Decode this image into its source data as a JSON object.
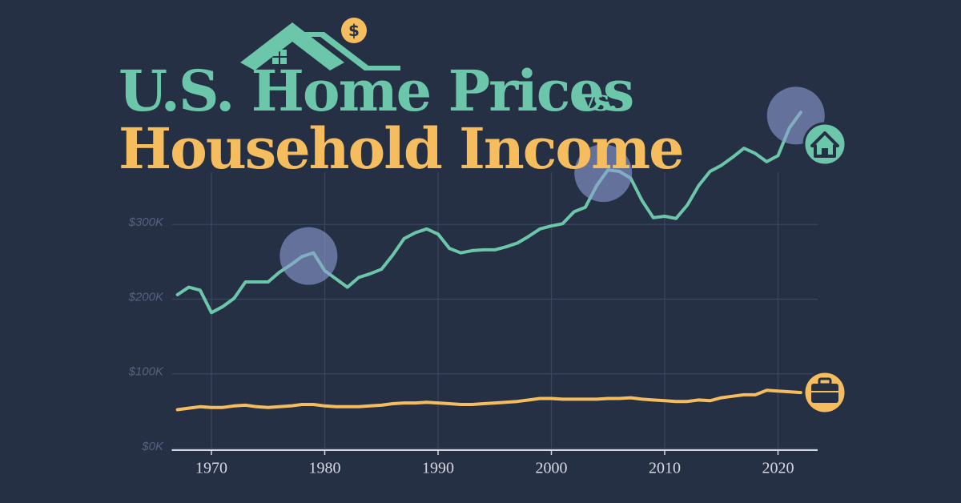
{
  "chart_data": {
    "type": "line",
    "title": "U.S. Home Prices",
    "title_connector": "vs.",
    "title_line2": "Household Income",
    "x": [
      1967,
      1968,
      1969,
      1970,
      1971,
      1972,
      1973,
      1974,
      1975,
      1976,
      1977,
      1978,
      1979,
      1980,
      1981,
      1982,
      1983,
      1984,
      1985,
      1986,
      1987,
      1988,
      1989,
      1990,
      1991,
      1992,
      1993,
      1994,
      1995,
      1996,
      1997,
      1998,
      1999,
      2000,
      2001,
      2002,
      2003,
      2004,
      2005,
      2006,
      2007,
      2008,
      2009,
      2010,
      2011,
      2012,
      2013,
      2014,
      2015,
      2016,
      2017,
      2018,
      2019,
      2020,
      2021,
      2022
    ],
    "series": [
      {
        "color": "#6cc7aa",
        "values": [
          206,
          216,
          212,
          182,
          190,
          201,
          223,
          223,
          223,
          236,
          246,
          257,
          262,
          238,
          227,
          216,
          229,
          234,
          240,
          259,
          281,
          289,
          294,
          287,
          268,
          262,
          265,
          266,
          266,
          270,
          275,
          284,
          294,
          298,
          301,
          317,
          323,
          352,
          373,
          371,
          362,
          332,
          309,
          311,
          308,
          326,
          352,
          371,
          379,
          390,
          402,
          395,
          384,
          392,
          429,
          450
        ]
      },
      {
        "color": "#f5bd5e",
        "values": [
          52,
          54,
          56,
          55,
          55,
          57,
          58,
          56,
          55,
          56,
          57,
          59,
          59,
          57,
          56,
          56,
          56,
          57,
          58,
          60,
          61,
          61,
          62,
          61,
          60,
          59,
          59,
          60,
          61,
          62,
          63,
          65,
          67,
          67,
          66,
          66,
          66,
          66,
          67,
          67,
          68,
          66,
          65,
          64,
          63,
          63,
          65,
          64,
          68,
          70,
          72,
          72,
          78,
          77,
          76,
          75
        ]
      }
    ],
    "highlights": [
      1979,
      2005,
      2022
    ],
    "xlim": [
      1966.5,
      2023.5
    ],
    "xticks": [
      1970,
      1980,
      1990,
      2000,
      2010,
      2020
    ],
    "ylim": [
      0,
      460
    ],
    "yticks": [
      {
        "value": 0,
        "label": "$0K"
      },
      {
        "value": 100,
        "label": "$100K"
      },
      {
        "value": 200,
        "label": "$200K"
      },
      {
        "value": 300,
        "label": "$300K"
      }
    ],
    "grid": true
  }
}
